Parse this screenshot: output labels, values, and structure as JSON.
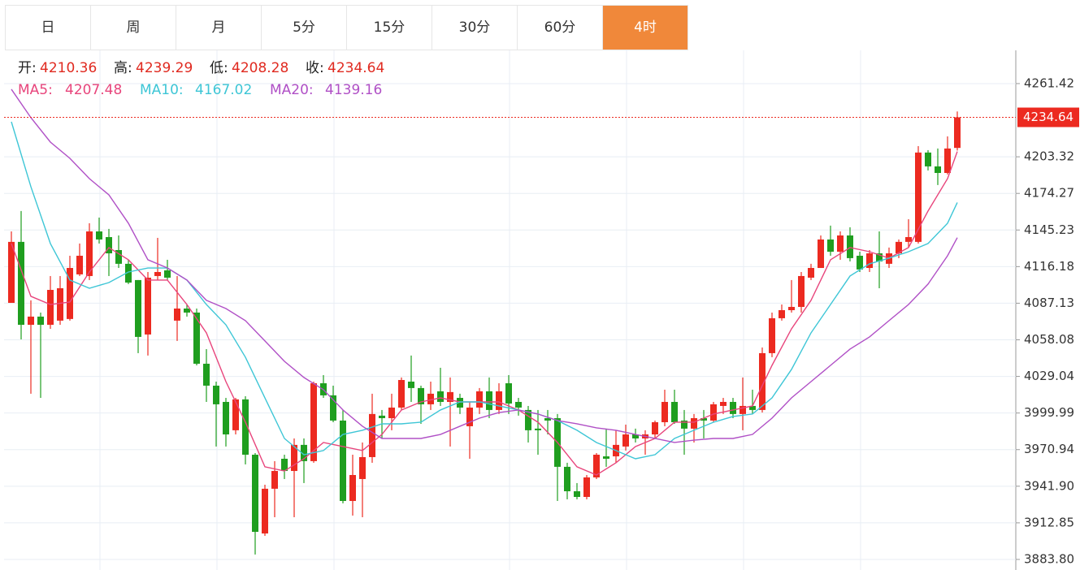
{
  "tabs": [
    "日",
    "周",
    "月",
    "5分",
    "15分",
    "30分",
    "60分",
    "4时"
  ],
  "active_tab": 7,
  "chart_data": {
    "type": "candlestick",
    "up_color": "#ec2a20",
    "down_color": "#1f9e1f",
    "ylim": [
      3876.7,
      4287.8
    ],
    "yticks": [
      4261.42,
      4203.32,
      4174.27,
      4145.23,
      4116.18,
      4087.13,
      4058.08,
      4029.04,
      3999.99,
      3970.94,
      {
        "value": 3941.9,
        "label": "3941.90"
      },
      3912.85,
      {
        "value": 3883.8,
        "label": "3883.80"
      }
    ],
    "grid": true,
    "ohlc_labels": [
      "开:",
      "高:",
      "低:",
      "收:"
    ],
    "open": [
      4087.4,
      4135.8,
      4070.0,
      4076.5,
      4070.0,
      4073.3,
      4074.6,
      4110.0,
      4108.7,
      4144.1,
      4139.6,
      4129.3,
      4118.4,
      4105.5,
      4062.3,
      4108.7,
      4113.2,
      4073.3,
      4082.9,
      4079.7,
      4039.1,
      4021.7,
      4008.8,
      3986.3,
      4010.8,
      3966.9,
      3904.4,
      3939.9,
      3963.7,
      3954.0,
      3974.7,
      3961.8,
      4023.6,
      4014.0,
      3994.0,
      3930.2,
      3947.6,
      3965.0,
      3997.9,
      3995.9,
      4004.3,
      4024.9,
      4019.8,
      4006.9,
      4017.2,
      4008.8,
      4012.0,
      3989.5,
      4004.3,
      4017.2,
      4002.4,
      4023.6,
      4008.8,
      4002.4,
      3987.6,
      3995.9,
      3995.9,
      3957.3,
      3937.9,
      3933.4,
      3948.9,
      3965.6,
      3965.6,
      3973.4,
      3983.0,
      3979.8,
      3983.0,
      3992.7,
      4008.8,
      3994.0,
      3987.6,
      3995.9,
      3994.0,
      4005.6,
      4008.8,
      3999.2,
      4005.6,
      4002.4,
      4047.5,
      4075.2,
      4081.6,
      4084.2,
      4107.4,
      4115.1,
      4137.7,
      4128.0,
      4140.9,
      4124.8,
      4115.1,
      4126.7,
      4118.4,
      4126.7,
      4135.8,
      4135.8,
      4206.7,
      4195.7,
      4190.5,
      4210.36
    ],
    "high": [
      4144.1,
      4160.3,
      4089.4,
      4079.7,
      4108.7,
      4108.7,
      4124.8,
      4134.5,
      4150.6,
      4155.1,
      4146.1,
      4140.9,
      4121.6,
      4105.5,
      4111.9,
      4139.0,
      4121.6,
      4108.7,
      4086.1,
      4082.9,
      4050.7,
      4024.9,
      4012.0,
      4012.0,
      4013.3,
      3968.2,
      3943.1,
      3961.8,
      3966.9,
      3979.8,
      3979.8,
      4024.9,
      4030.1,
      4021.7,
      4002.4,
      3966.9,
      3976.6,
      4015.3,
      4002.4,
      4015.3,
      4028.2,
      4045.6,
      4021.7,
      4024.9,
      4035.9,
      4028.2,
      4015.3,
      4008.8,
      4019.8,
      4028.2,
      4023.6,
      4030.1,
      4012.0,
      4005.6,
      4002.4,
      4002.4,
      3999.2,
      3960.5,
      3944.4,
      3950.8,
      3968.2,
      3987.6,
      3986.3,
      3990.8,
      3987.6,
      3986.3,
      3994.0,
      4018.5,
      4018.5,
      4002.4,
      3999.2,
      4002.4,
      4008.8,
      4012.0,
      4012.0,
      4028.2,
      4018.5,
      4052.0,
      4079.7,
      4086.1,
      4105.5,
      4111.9,
      4118.4,
      4140.9,
      4148.7,
      4144.1,
      4147.4,
      4128.0,
      4129.3,
      4144.1,
      4131.3,
      4137.7,
      4153.8,
      4211.8,
      4208.6,
      4209.9,
      4219.5,
      4239.29
    ],
    "low": [
      4087.4,
      4058.4,
      4015.3,
      4012.0,
      4066.8,
      4070.0,
      4073.3,
      4108.7,
      4105.5,
      4134.5,
      4108.7,
      4115.1,
      4102.3,
      4047.5,
      4045.6,
      4105.5,
      4105.5,
      4057.2,
      4076.5,
      4037.8,
      4008.8,
      3973.4,
      3973.4,
      3983.0,
      3959.2,
      3887.7,
      3902.5,
      3917.3,
      3947.6,
      3917.3,
      3944.4,
      3960.5,
      4012.0,
      3992.7,
      3928.3,
      3918.6,
      3917.3,
      3960.5,
      3979.8,
      3986.3,
      4002.4,
      4008.8,
      3991.4,
      4002.4,
      4005.6,
      3973.4,
      3999.2,
      3963.7,
      3999.2,
      3995.9,
      3999.2,
      3999.2,
      3997.9,
      3976.6,
      3966.9,
      3983.0,
      3930.2,
      3931.5,
      3931.5,
      3931.5,
      3947.6,
      3957.3,
      3960.5,
      3970.2,
      3976.6,
      3966.9,
      3979.8,
      3989.5,
      3991.4,
      3966.9,
      3976.6,
      3979.8,
      3992.7,
      3999.2,
      3995.9,
      3986.3,
      3999.2,
      4000.4,
      4044.3,
      4073.3,
      4079.7,
      4079.7,
      4105.5,
      4115.1,
      4124.8,
      4121.6,
      4120.3,
      4111.9,
      4111.9,
      4099.0,
      4115.1,
      4122.9,
      4131.3,
      4134.5,
      4192.5,
      4180.9,
      4189.3,
      4208.28
    ],
    "close": [
      4135.8,
      4070.0,
      4076.5,
      4070.0,
      4097.7,
      4099.0,
      4115.1,
      4124.8,
      4144.1,
      4137.7,
      4126.7,
      4118.4,
      4103.5,
      4060.4,
      4107.4,
      4111.9,
      4107.4,
      4082.9,
      4079.7,
      4039.1,
      4021.7,
      4006.9,
      3983.0,
      4010.8,
      3966.9,
      3905.7,
      3939.9,
      3954.0,
      3954.0,
      3974.7,
      3961.8,
      4023.6,
      4014.0,
      3994.0,
      3930.2,
      3950.8,
      3965.0,
      3999.2,
      3995.9,
      4004.3,
      4026.2,
      4019.8,
      4006.9,
      4015.3,
      4008.8,
      4016.6,
      4004.3,
      4004.3,
      4017.2,
      4002.4,
      4017.2,
      4007.5,
      4004.3,
      3986.3,
      3986.3,
      3994.0,
      3957.3,
      3937.9,
      3933.4,
      3948.9,
      3966.9,
      3963.7,
      3974.7,
      3983.0,
      3979.8,
      3983.0,
      3992.7,
      4008.8,
      3992.7,
      3987.6,
      3995.9,
      3994.0,
      4006.9,
      4008.8,
      3999.2,
      4005.6,
      4002.4,
      4047.5,
      4075.2,
      4081.6,
      4084.2,
      4108.7,
      4115.1,
      4137.7,
      4128.0,
      4140.9,
      4122.9,
      4113.9,
      4126.7,
      4120.3,
      4126.7,
      4135.8,
      4139.6,
      4206.7,
      4195.7,
      4190.5,
      4209.9,
      4234.64
    ],
    "series": [
      {
        "name": "MA5:",
        "color": "#e8457c",
        "x": [
          0,
          2,
          4,
          6,
          8,
          10,
          12,
          14,
          16,
          18,
          20,
          22,
          24,
          26,
          28,
          30,
          32,
          34,
          36,
          38,
          40,
          42,
          44,
          46,
          48,
          50,
          52,
          54,
          56,
          58,
          60,
          62,
          64,
          66,
          68,
          70,
          72,
          74,
          76,
          78,
          80,
          82,
          84,
          86,
          88,
          90,
          92,
          94,
          96,
          97
        ],
        "values": [
          4134.5,
          4092.6,
          4086.1,
          4088.1,
          4111.9,
          4131.3,
          4121.6,
          4105.5,
          4105.5,
          4086.1,
          4063.6,
          4024.9,
          3992.7,
          3957.3,
          3954.0,
          3963.7,
          3976.6,
          3973.4,
          3970.2,
          3983.0,
          4002.4,
          4008.8,
          4012.0,
          4008.8,
          4008.8,
          4008.8,
          4002.4,
          3992.7,
          3976.6,
          3957.3,
          3950.8,
          3960.5,
          3973.4,
          3979.8,
          3992.7,
          3992.7,
          3999.2,
          4002.4,
          4005.6,
          4037.8,
          4066.8,
          4089.4,
          4121.6,
          4131.3,
          4128.0,
          4122.9,
          4131.3,
          4160.3,
          4186.0,
          4207.48
        ]
      },
      {
        "name": "MA10:",
        "color": "#3ec6d6",
        "x": [
          0,
          2,
          4,
          6,
          8,
          10,
          12,
          14,
          16,
          18,
          20,
          22,
          24,
          26,
          28,
          30,
          32,
          34,
          36,
          38,
          40,
          42,
          44,
          46,
          48,
          50,
          52,
          54,
          56,
          58,
          60,
          62,
          64,
          66,
          68,
          70,
          72,
          74,
          76,
          78,
          80,
          82,
          84,
          86,
          88,
          90,
          92,
          94,
          96,
          97
        ],
        "values": [
          4231.1,
          4179.6,
          4134.5,
          4105.5,
          4099.0,
          4103.5,
          4111.9,
          4115.1,
          4115.1,
          4105.5,
          4086.1,
          4070.0,
          4044.3,
          4012.0,
          3979.8,
          3966.9,
          3970.2,
          3983.0,
          3986.3,
          3991.4,
          3991.4,
          3992.7,
          4002.4,
          4008.8,
          4008.8,
          4005.6,
          4002.4,
          3999.2,
          3994.0,
          3986.3,
          3976.6,
          3970.2,
          3963.7,
          3966.9,
          3979.8,
          3986.3,
          3992.7,
          3997.2,
          3999.2,
          4012.0,
          4034.6,
          4063.6,
          4086.1,
          4108.7,
          4118.4,
          4122.9,
          4128.0,
          4134.5,
          4150.6,
          4167.02
        ]
      },
      {
        "name": "MA20:",
        "color": "#b050c6",
        "x": [
          0,
          2,
          4,
          6,
          8,
          10,
          12,
          14,
          16,
          18,
          20,
          22,
          24,
          26,
          28,
          30,
          32,
          34,
          36,
          38,
          40,
          42,
          44,
          46,
          48,
          50,
          52,
          54,
          56,
          58,
          60,
          62,
          64,
          66,
          68,
          70,
          72,
          74,
          76,
          78,
          80,
          82,
          84,
          86,
          88,
          90,
          92,
          94,
          96,
          97
        ],
        "values": [
          4256.9,
          4234.4,
          4215.0,
          4202.1,
          4186.0,
          4173.1,
          4150.6,
          4121.6,
          4115.1,
          4105.5,
          4089.4,
          4082.9,
          4073.3,
          4057.2,
          4041.0,
          4028.2,
          4018.5,
          4002.4,
          3989.5,
          3979.8,
          3979.8,
          3979.8,
          3983.0,
          3989.5,
          3995.9,
          4000.4,
          4002.4,
          3999.2,
          3994.0,
          3991.4,
          3988.2,
          3986.3,
          3983.0,
          3979.8,
          3976.6,
          3978.5,
          3979.8,
          3979.8,
          3983.0,
          3995.9,
          4012.0,
          4024.9,
          4037.8,
          4050.7,
          4060.4,
          4073.3,
          4086.1,
          4102.3,
          4124.8,
          4139.16
        ]
      }
    ]
  }
}
